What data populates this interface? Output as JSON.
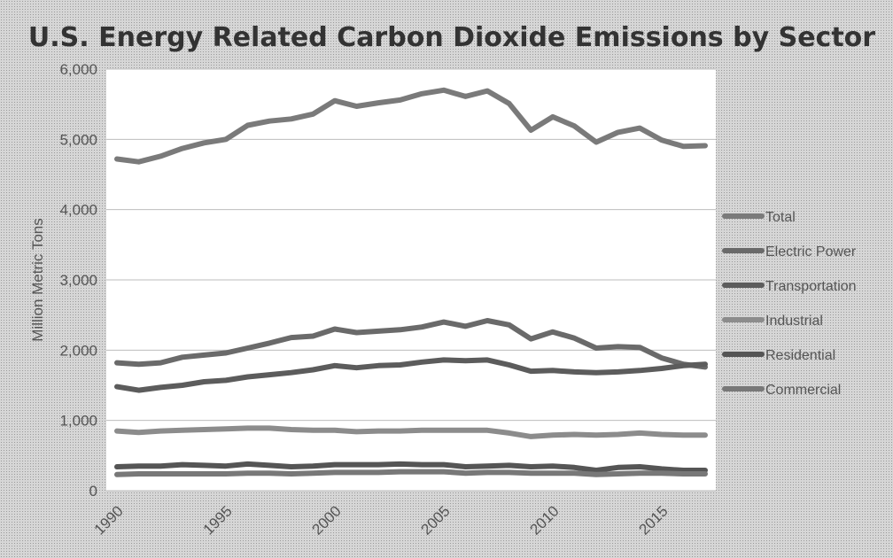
{
  "chart_data": {
    "type": "line",
    "title": "U.S. Energy Related Carbon Dioxide Emissions by Sector",
    "ylabel": "Million Metric Tons",
    "xlabel": "",
    "ylim": [
      0,
      6000
    ],
    "xlim": [
      1990,
      2017
    ],
    "y_ticks": [
      "0",
      "1,000",
      "2,000",
      "3,000",
      "4,000",
      "5,000",
      "6,000"
    ],
    "x_ticks": [
      "1990",
      "1995",
      "2000",
      "2005",
      "2010",
      "2015"
    ],
    "grid": "horizontal",
    "legend_position": "right",
    "x": [
      1990,
      1991,
      1992,
      1993,
      1994,
      1995,
      1996,
      1997,
      1998,
      1999,
      2000,
      2001,
      2002,
      2003,
      2004,
      2005,
      2006,
      2007,
      2008,
      2009,
      2010,
      2011,
      2012,
      2013,
      2014,
      2015,
      2016,
      2017
    ],
    "series": [
      {
        "name": "Total",
        "color": "#7a7a7a",
        "values": [
          4720,
          4680,
          4760,
          4870,
          4950,
          5000,
          5200,
          5260,
          5290,
          5360,
          5550,
          5470,
          5520,
          5560,
          5650,
          5700,
          5610,
          5690,
          5510,
          5130,
          5320,
          5190,
          4960,
          5100,
          5160,
          4990,
          4900,
          4910
        ]
      },
      {
        "name": "Electric Power",
        "color": "#6a6a6a",
        "values": [
          1820,
          1800,
          1820,
          1900,
          1930,
          1960,
          2030,
          2100,
          2180,
          2200,
          2300,
          2250,
          2270,
          2290,
          2330,
          2400,
          2340,
          2420,
          2360,
          2160,
          2260,
          2170,
          2030,
          2050,
          2040,
          1890,
          1800,
          1760
        ]
      },
      {
        "name": "Transportation",
        "color": "#5c5c5c",
        "values": [
          1480,
          1430,
          1470,
          1500,
          1550,
          1570,
          1620,
          1650,
          1680,
          1720,
          1780,
          1750,
          1780,
          1790,
          1830,
          1860,
          1850,
          1860,
          1790,
          1700,
          1710,
          1690,
          1680,
          1690,
          1710,
          1740,
          1780,
          1800
        ]
      },
      {
        "name": "Industrial",
        "color": "#8c8c8c",
        "values": [
          850,
          830,
          850,
          860,
          870,
          880,
          890,
          890,
          870,
          860,
          860,
          840,
          850,
          850,
          860,
          860,
          860,
          860,
          820,
          770,
          790,
          800,
          790,
          800,
          820,
          800,
          790,
          790
        ]
      },
      {
        "name": "Residential",
        "color": "#555555",
        "values": [
          340,
          350,
          350,
          370,
          360,
          350,
          380,
          360,
          340,
          350,
          370,
          370,
          370,
          380,
          370,
          370,
          340,
          350,
          360,
          340,
          350,
          330,
          290,
          330,
          340,
          310,
          290,
          290
        ]
      },
      {
        "name": "Commercial",
        "color": "#787878",
        "values": [
          230,
          240,
          240,
          240,
          240,
          240,
          250,
          250,
          240,
          250,
          260,
          260,
          260,
          270,
          270,
          270,
          250,
          260,
          260,
          250,
          250,
          250,
          230,
          240,
          250,
          250,
          240,
          240
        ]
      }
    ]
  }
}
